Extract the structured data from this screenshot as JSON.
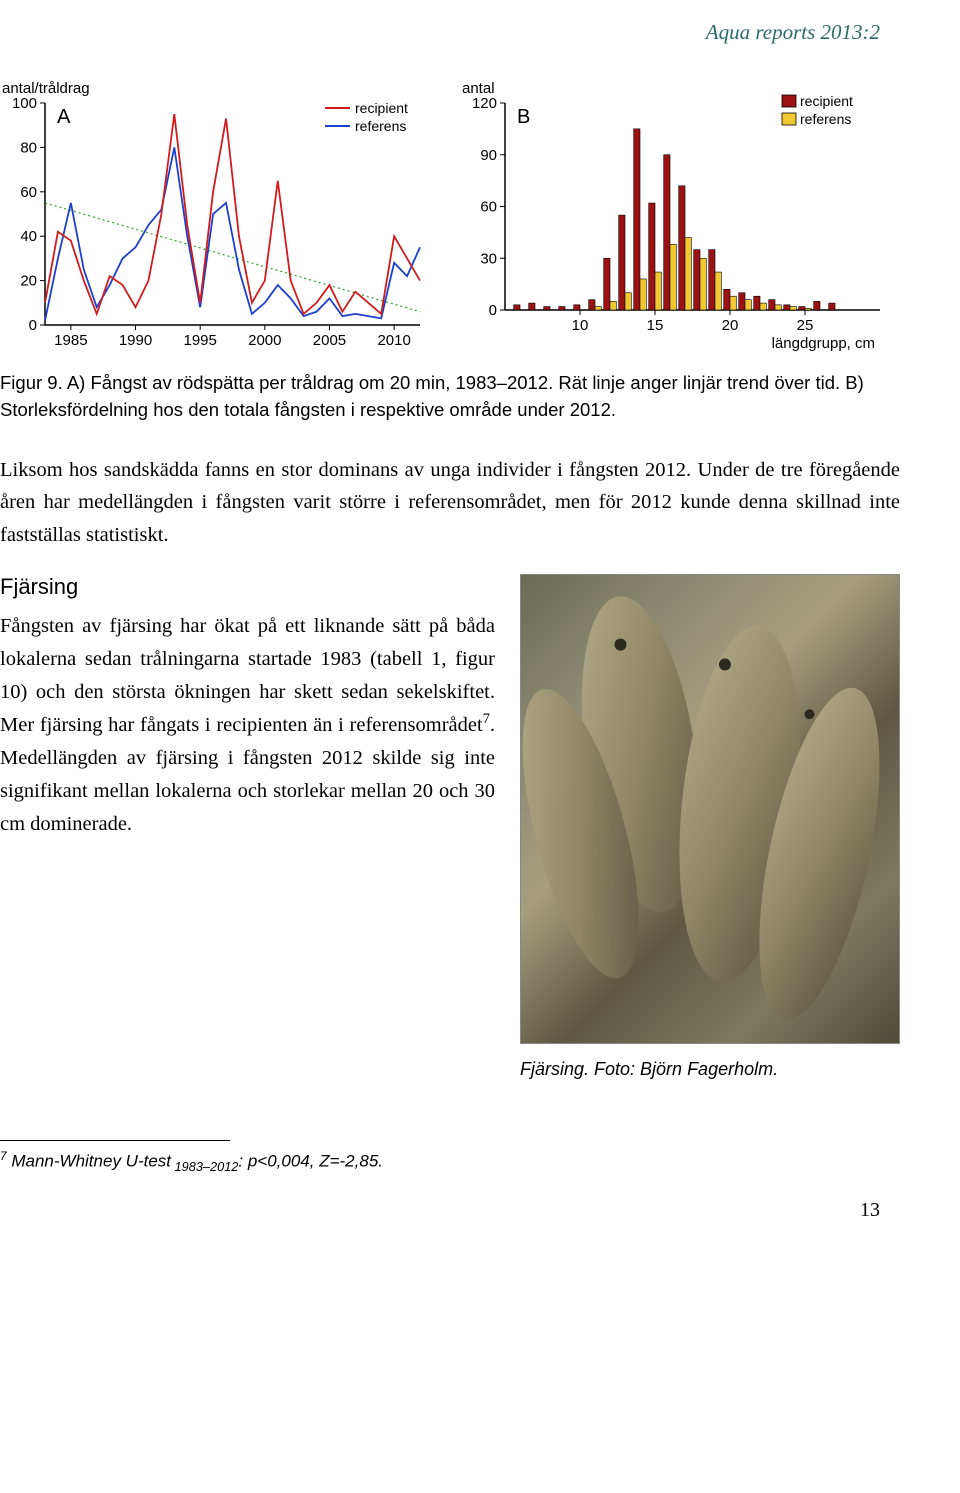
{
  "header": {
    "report_title": "Aqua reports 2013:2"
  },
  "chartA": {
    "type": "line",
    "label": "A",
    "y_axis_title": "antal/tråldrag",
    "x_ticks": [
      1985,
      1990,
      1995,
      2000,
      2005,
      2010
    ],
    "y_ticks": [
      0,
      20,
      40,
      60,
      80,
      100
    ],
    "xlim": [
      1983,
      2012
    ],
    "ylim": [
      0,
      100
    ],
    "legend": [
      {
        "label": "recipient",
        "color": "#d01c1c"
      },
      {
        "label": "referens",
        "color": "#1c3fd0"
      }
    ],
    "trend_color": "#2aa02a",
    "trend_dash": "2,3",
    "series": {
      "recipient": {
        "color": "#d01c1c",
        "points": [
          [
            1983,
            10
          ],
          [
            1984,
            42
          ],
          [
            1985,
            38
          ],
          [
            1986,
            20
          ],
          [
            1987,
            5
          ],
          [
            1988,
            22
          ],
          [
            1989,
            18
          ],
          [
            1990,
            8
          ],
          [
            1991,
            20
          ],
          [
            1992,
            50
          ],
          [
            1993,
            95
          ],
          [
            1994,
            45
          ],
          [
            1995,
            10
          ],
          [
            1996,
            60
          ],
          [
            1997,
            93
          ],
          [
            1998,
            40
          ],
          [
            1999,
            10
          ],
          [
            2000,
            20
          ],
          [
            2001,
            65
          ],
          [
            2002,
            20
          ],
          [
            2003,
            5
          ],
          [
            2004,
            10
          ],
          [
            2005,
            18
          ],
          [
            2006,
            6
          ],
          [
            2007,
            15
          ],
          [
            2008,
            10
          ],
          [
            2009,
            5
          ],
          [
            2010,
            40
          ],
          [
            2011,
            30
          ],
          [
            2012,
            20
          ]
        ]
      },
      "referens": {
        "color": "#1c3fd0",
        "points": [
          [
            1983,
            2
          ],
          [
            1984,
            30
          ],
          [
            1985,
            55
          ],
          [
            1986,
            25
          ],
          [
            1987,
            8
          ],
          [
            1988,
            18
          ],
          [
            1989,
            30
          ],
          [
            1990,
            35
          ],
          [
            1991,
            45
          ],
          [
            1992,
            52
          ],
          [
            1993,
            80
          ],
          [
            1994,
            40
          ],
          [
            1995,
            8
          ],
          [
            1996,
            50
          ],
          [
            1997,
            55
          ],
          [
            1998,
            25
          ],
          [
            1999,
            5
          ],
          [
            2000,
            10
          ],
          [
            2001,
            18
          ],
          [
            2002,
            12
          ],
          [
            2003,
            4
          ],
          [
            2004,
            6
          ],
          [
            2005,
            12
          ],
          [
            2006,
            4
          ],
          [
            2007,
            5
          ],
          [
            2008,
            4
          ],
          [
            2009,
            3
          ],
          [
            2010,
            28
          ],
          [
            2011,
            22
          ],
          [
            2012,
            35
          ]
        ]
      }
    },
    "trend": [
      [
        1983,
        55
      ],
      [
        2012,
        6
      ]
    ]
  },
  "chartB": {
    "type": "bar",
    "label": "B",
    "y_axis_title": "antal",
    "x_axis_title": "längdgrupp, cm",
    "x_ticks": [
      10,
      15,
      20,
      25
    ],
    "y_ticks": [
      0,
      30,
      60,
      90,
      120
    ],
    "xlim": [
      5,
      30
    ],
    "ylim": [
      0,
      120
    ],
    "legend": [
      {
        "label": "recipient",
        "color": "#9c1111",
        "border": "#000000"
      },
      {
        "label": "referens",
        "color": "#f0c830",
        "border": "#000000"
      }
    ],
    "bars": {
      "recipient": {
        "color": "#9c1111",
        "data": [
          [
            6,
            3
          ],
          [
            7,
            4
          ],
          [
            8,
            2
          ],
          [
            9,
            2
          ],
          [
            10,
            3
          ],
          [
            11,
            6
          ],
          [
            12,
            30
          ],
          [
            13,
            55
          ],
          [
            14,
            105
          ],
          [
            15,
            62
          ],
          [
            16,
            90
          ],
          [
            17,
            72
          ],
          [
            18,
            35
          ],
          [
            19,
            35
          ],
          [
            20,
            12
          ],
          [
            21,
            10
          ],
          [
            22,
            8
          ],
          [
            23,
            6
          ],
          [
            24,
            3
          ],
          [
            25,
            2
          ],
          [
            26,
            5
          ],
          [
            27,
            4
          ]
        ]
      },
      "referens": {
        "color": "#f0c830",
        "data": [
          [
            7,
            0
          ],
          [
            11,
            2
          ],
          [
            12,
            5
          ],
          [
            13,
            10
          ],
          [
            14,
            18
          ],
          [
            15,
            22
          ],
          [
            16,
            38
          ],
          [
            17,
            42
          ],
          [
            18,
            30
          ],
          [
            19,
            22
          ],
          [
            20,
            8
          ],
          [
            21,
            6
          ],
          [
            22,
            4
          ],
          [
            23,
            3
          ],
          [
            24,
            2
          ],
          [
            25,
            1
          ]
        ]
      }
    }
  },
  "caption": {
    "prefix": "Figur 9.",
    "text": " A) Fångst av rödspätta per tråldrag om 20 min, 1983–2012. Rät linje anger linjär trend över tid. B) Storleksfördelning hos den totala fångsten i respektive område under 2012."
  },
  "paragraphs": {
    "p1": "Liksom hos sandskädda fanns en stor dominans av unga individer i fångsten 2012. Under de tre föregående åren har medellängden i fångsten varit större i referensområdet, men för 2012 kunde denna skillnad inte fastställas statistiskt."
  },
  "section": {
    "heading": "Fjärsing",
    "body_part1": "Fångsten av fjärsing har ökat på ett liknande sätt på båda lokalerna sedan trålningarna startade 1983 (tabell 1, figur 10) och den största ökningen har skett sedan sekelskiftet. Mer fjärsing har fångats i recipienten än i referensområdet",
    "sup": "7",
    "body_part2": ". Medellängden av fjärsing i fångsten 2012 skilde sig inte signifikant mellan lokalerna och storlekar mellan 20 och 30 cm dominerade."
  },
  "photo": {
    "caption": "Fjärsing. Foto: Björn Fagerholm."
  },
  "footnote": {
    "num": "7",
    "label": " Mann-Whitney U-test",
    "sub": " 1983–2012",
    "rest": ": p<0,004, Z=-2,85."
  },
  "page_number": "13",
  "svg": {
    "axis_color": "#000000",
    "font": "Arial, sans-serif",
    "bg": "#ffffff"
  }
}
